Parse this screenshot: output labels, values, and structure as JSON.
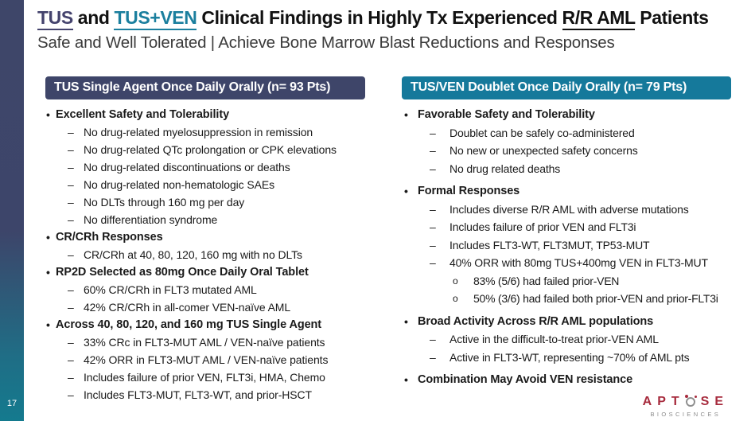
{
  "page_number": "17",
  "colors": {
    "navy_header": "#3e4569",
    "teal_header": "#15799b",
    "title_navy": "#44436d",
    "title_teal": "#1b7f9e",
    "sidebar_gradient_top": "#3e4669",
    "sidebar_gradient_bottom": "#147a8e",
    "logo_red": "#a72b3d",
    "logo_gray": "#8f8f8f"
  },
  "title": {
    "tus": "TUS",
    "and": " and ",
    "tusven": "TUS+VEN",
    "middle": " Clinical Findings in Highly Tx Experienced ",
    "rraml": "R/R AML",
    "patients": " Patients"
  },
  "subtitle": "Safe and Well Tolerated | Achieve Bone Marrow Blast Reductions and Responses",
  "left_panel": {
    "header": "TUS Single Agent Once Daily Orally (n= 93 Pts)",
    "sections": [
      {
        "title": "Excellent Safety and Tolerability",
        "items": [
          "No drug-related myelosuppression in remission",
          "No drug-related QTc prolongation or CPK elevations",
          "No drug-related discontinuations or deaths",
          "No drug-related non-hematologic SAEs",
          "No DLTs through 160 mg per day",
          "No differentiation syndrome"
        ]
      },
      {
        "title": "CR/CRh Responses",
        "items": [
          "CR/CRh at 40, 80, 120, 160 mg with no DLTs"
        ]
      },
      {
        "title": "RP2D Selected as 80mg Once Daily Oral Tablet",
        "items": [
          "60% CR/CRh in FLT3 mutated AML",
          "42%  CR/CRh in all-comer VEN-naïve AML"
        ]
      },
      {
        "title": "Across 40, 80, 120, and 160 mg TUS Single Agent",
        "items": [
          "33% CRc in FLT3-MUT AML / VEN-naïve patients",
          "42% ORR in FLT3-MUT AML / VEN-naïve patients",
          "Includes failure of prior VEN, FLT3i, HMA, Chemo",
          "Includes FLT3-MUT, FLT3-WT, and prior-HSCT"
        ]
      }
    ]
  },
  "right_panel": {
    "header": "TUS/VEN Doublet Once Daily Orally (n= 79 Pts)",
    "sections": [
      {
        "title": "Favorable Safety and Tolerability",
        "items": [
          "Doublet can be safely co-administered",
          "No new or unexpected safety concerns",
          "No drug related deaths"
        ]
      },
      {
        "title": "Formal Responses",
        "items": [
          "Includes diverse R/R AML with adverse mutations",
          "Includes failure of prior VEN and FLT3i",
          "Includes FLT3-WT, FLT3MUT, TP53-MUT",
          "40% ORR with 80mg TUS+400mg VEN in FLT3-MUT"
        ],
        "subitems": [
          "83% (5/6) had failed prior-VEN",
          "50% (3/6) had failed both prior-VEN and prior-FLT3i"
        ]
      },
      {
        "title": "Broad Activity Across R/R AML populations",
        "items": [
          "Active in the difficult-to-treat prior-VEN AML",
          "Active in FLT3-WT, representing ~70% of AML pts"
        ]
      },
      {
        "title": "Combination May Avoid VEN resistance",
        "items": []
      }
    ]
  },
  "logo": {
    "word_start": "APT",
    "o_icon": "molecule-o",
    "word_end": "SE",
    "sub": "BIOSCIENCES"
  }
}
